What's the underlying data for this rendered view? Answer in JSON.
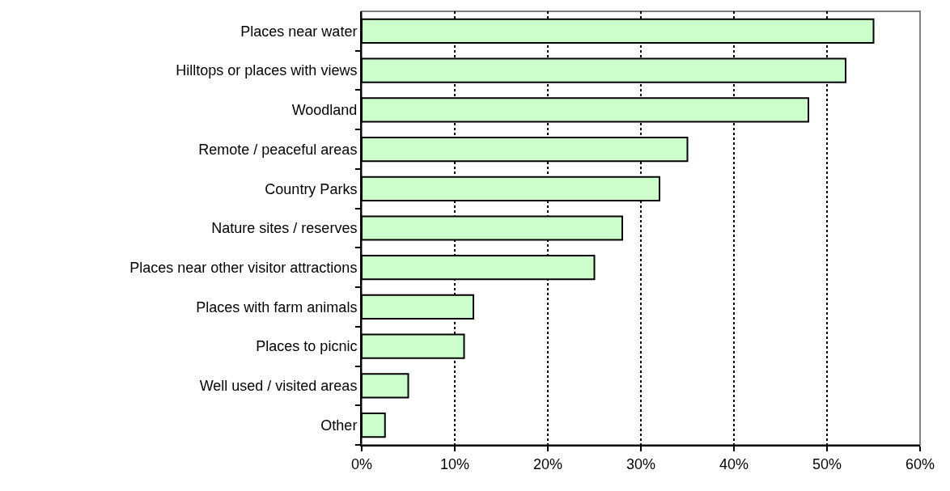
{
  "chart_data": {
    "type": "bar",
    "orientation": "horizontal",
    "categories": [
      "Places near water",
      "Hilltops or places with views",
      "Woodland",
      "Remote / peaceful areas",
      "Country Parks",
      "Nature sites / reserves",
      "Places near other visitor attractions",
      "Places with farm animals",
      "Places to picnic",
      "Well used / visited areas",
      "Other"
    ],
    "values": [
      55,
      52,
      48,
      35,
      32,
      28,
      25,
      12,
      11,
      5,
      2.5
    ],
    "color": "#ccffcc",
    "xlim": [
      0,
      60
    ],
    "xticks": [
      {
        "value": 0,
        "label": "0%"
      },
      {
        "value": 10,
        "label": "10%"
      },
      {
        "value": 20,
        "label": "20%"
      },
      {
        "value": 30,
        "label": "30%"
      },
      {
        "value": 40,
        "label": "40%"
      },
      {
        "value": 50,
        "label": "50%"
      },
      {
        "value": 60,
        "label": "60%"
      }
    ],
    "grid": "x"
  }
}
